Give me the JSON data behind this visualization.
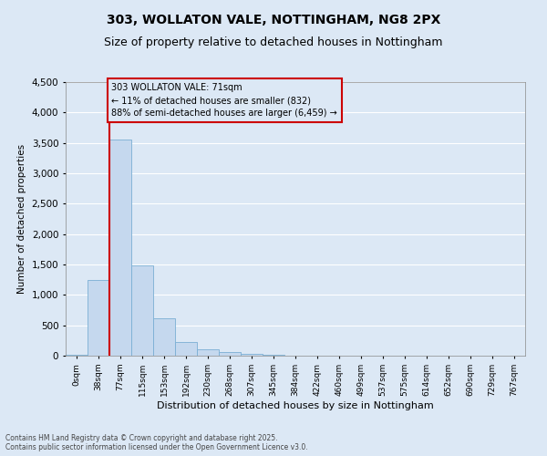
{
  "title_line1": "303, WOLLATON VALE, NOTTINGHAM, NG8 2PX",
  "title_line2": "Size of property relative to detached houses in Nottingham",
  "xlabel": "Distribution of detached houses by size in Nottingham",
  "ylabel": "Number of detached properties",
  "bar_color": "#c5d8ee",
  "bar_edge_color": "#7aafd4",
  "bar_categories": [
    "0sqm",
    "38sqm",
    "77sqm",
    "115sqm",
    "153sqm",
    "192sqm",
    "230sqm",
    "268sqm",
    "307sqm",
    "345sqm",
    "384sqm",
    "422sqm",
    "460sqm",
    "499sqm",
    "537sqm",
    "575sqm",
    "614sqm",
    "652sqm",
    "690sqm",
    "729sqm",
    "767sqm"
  ],
  "bar_values": [
    20,
    1250,
    3560,
    1480,
    620,
    220,
    100,
    60,
    30,
    10,
    5,
    3,
    2,
    1,
    0,
    0,
    0,
    0,
    0,
    0,
    0
  ],
  "ylim": [
    0,
    4500
  ],
  "yticks": [
    0,
    500,
    1000,
    1500,
    2000,
    2500,
    3000,
    3500,
    4000,
    4500
  ],
  "vline_x": 2,
  "vline_color": "#cc0000",
  "annotation_text": "303 WOLLATON VALE: 71sqm\n← 11% of detached houses are smaller (832)\n88% of semi-detached houses are larger (6,459) →",
  "annotation_box_color": "#cc0000",
  "background_color": "#dce8f5",
  "footer_text": "Contains HM Land Registry data © Crown copyright and database right 2025.\nContains public sector information licensed under the Open Government Licence v3.0.",
  "grid_color": "#ffffff",
  "title_fontsize": 10,
  "subtitle_fontsize": 9
}
